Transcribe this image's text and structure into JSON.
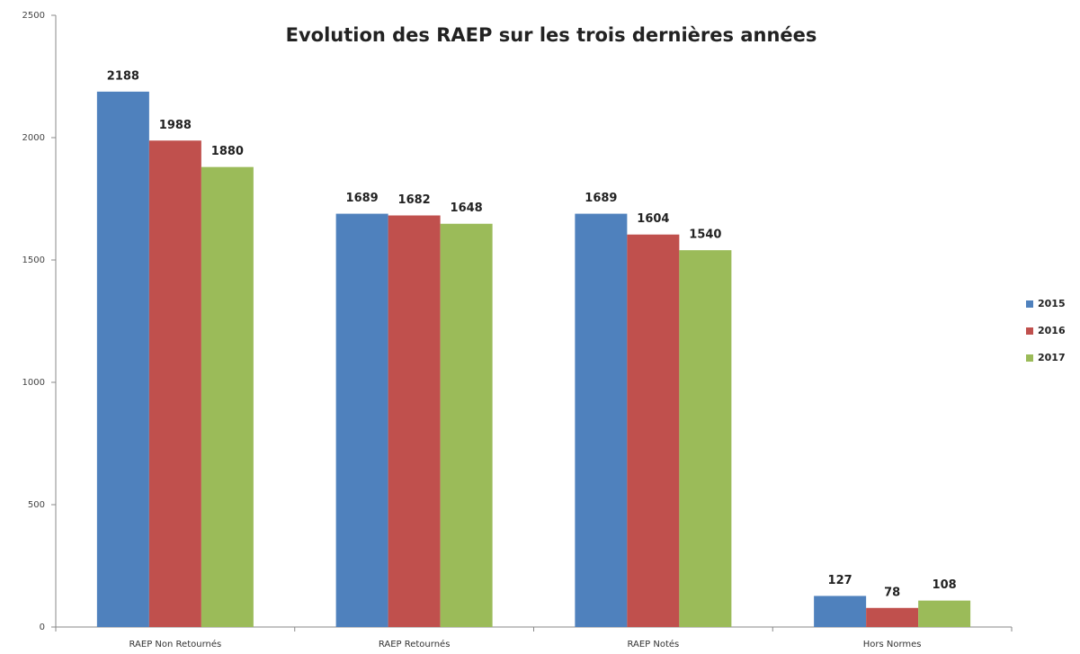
{
  "chart_data": {
    "type": "bar",
    "title": "Evolution des RAEP sur les trois dernières années",
    "categories": [
      "RAEP Non Retournés",
      "RAEP Retournés",
      "RAEP Notés",
      "Hors Normes"
    ],
    "series": [
      {
        "name": "2015",
        "color": "#4f81bd",
        "values": [
          2188,
          1689,
          1689,
          127
        ]
      },
      {
        "name": "2016",
        "color": "#c0504d",
        "values": [
          1988,
          1682,
          1604,
          78
        ]
      },
      {
        "name": "2017",
        "color": "#9bbb59",
        "values": [
          1880,
          1648,
          1540,
          108
        ]
      }
    ],
    "ylim": [
      0,
      2500
    ],
    "yticks": [
      0,
      500,
      1000,
      1500,
      2000,
      2500
    ],
    "grid": false,
    "legend": "right"
  }
}
